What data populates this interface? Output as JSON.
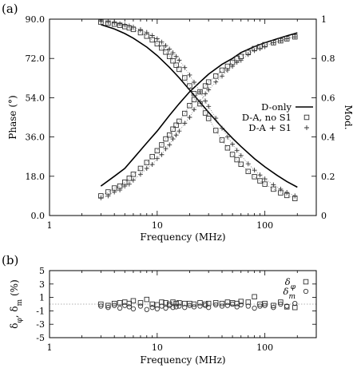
{
  "chart_data": [
    {
      "panel_label": "(a)",
      "type": "line",
      "x_scale": "log",
      "xlabel": "Frequency (MHz)",
      "ylabel": "Phase (°)",
      "y2label": "Mod.",
      "xlim": [
        1,
        300
      ],
      "ylim": [
        0,
        90
      ],
      "y2lim": [
        0,
        1
      ],
      "x_tick_labels": [
        "1",
        "10",
        "100"
      ],
      "y_tick_labels": [
        "0.0",
        "18.0",
        "36.0",
        "54.0",
        "72.0",
        "90.0"
      ],
      "y2_tick_labels": [
        "0",
        "0.2",
        "0.4",
        "0.6",
        "0.8",
        "1"
      ],
      "legend_position": "right-middle",
      "series": [
        {
          "name": "D-only",
          "marker": "line",
          "axis": "left",
          "x": [
            3,
            4,
            5,
            6,
            8,
            10,
            13,
            16,
            20,
            25,
            30,
            40,
            50,
            60,
            80,
            100,
            130,
            160,
            200
          ],
          "y": [
            87.5,
            85.5,
            83.4,
            81.3,
            77.2,
            73.3,
            67.9,
            63.1,
            57.6,
            51.9,
            47.3,
            40.4,
            35.4,
            31.6,
            26.1,
            22.3,
            18.4,
            15.6,
            13.0
          ]
        },
        {
          "name": "D-only",
          "marker": "line",
          "axis": "right",
          "legend": false,
          "x": [
            3,
            4,
            5,
            6,
            8,
            10,
            13,
            16,
            20,
            25,
            30,
            40,
            50,
            60,
            80,
            100,
            130,
            160,
            200
          ],
          "y": [
            0.15,
            0.2,
            0.24,
            0.29,
            0.37,
            0.43,
            0.51,
            0.57,
            0.63,
            0.68,
            0.72,
            0.77,
            0.8,
            0.83,
            0.86,
            0.88,
            0.9,
            0.915,
            0.93
          ]
        },
        {
          "name": "D-A, no S1",
          "marker": "square",
          "axis": "left",
          "x": [
            3,
            3.5,
            4,
            4.5,
            5,
            5.5,
            6,
            7,
            8,
            9,
            10,
            11,
            12,
            13,
            14,
            15,
            16,
            18,
            20,
            22,
            25,
            28,
            30,
            35,
            40,
            45,
            50,
            55,
            60,
            70,
            80,
            90,
            100,
            120,
            140,
            160,
            190
          ],
          "y": [
            88.6,
            88.2,
            87.7,
            87.2,
            86.6,
            86.0,
            85.3,
            83.8,
            82.2,
            80.5,
            78.7,
            76.8,
            74.9,
            72.9,
            70.9,
            68.9,
            67.0,
            63.1,
            59.4,
            55.9,
            51.2,
            47.0,
            44.5,
            39.0,
            34.6,
            31.0,
            28.0,
            25.6,
            23.5,
            20.2,
            17.8,
            15.9,
            14.4,
            12.1,
            10.4,
            9.2,
            7.8
          ]
        },
        {
          "name": "D-A, no S1",
          "marker": "square",
          "axis": "right",
          "legend": false,
          "x": [
            3,
            3.5,
            4,
            4.5,
            5,
            5.5,
            6,
            7,
            8,
            9,
            10,
            11,
            12,
            13,
            14,
            15,
            16,
            18,
            20,
            22,
            25,
            28,
            30,
            35,
            40,
            45,
            50,
            55,
            60,
            70,
            80,
            90,
            100,
            120,
            140,
            160,
            190
          ],
          "y": [
            0.1,
            0.12,
            0.14,
            0.15,
            0.17,
            0.19,
            0.21,
            0.24,
            0.27,
            0.3,
            0.33,
            0.36,
            0.39,
            0.41,
            0.44,
            0.46,
            0.48,
            0.52,
            0.56,
            0.59,
            0.63,
            0.66,
            0.68,
            0.71,
            0.74,
            0.76,
            0.78,
            0.8,
            0.81,
            0.83,
            0.85,
            0.86,
            0.87,
            0.88,
            0.89,
            0.9,
            0.91
          ]
        },
        {
          "name": "D-A + S1",
          "marker": "plus",
          "axis": "left",
          "x": [
            3,
            3.5,
            4,
            4.5,
            5,
            5.5,
            6,
            7,
            8,
            9,
            10,
            11,
            12,
            13,
            14,
            15,
            16,
            18,
            20,
            22,
            25,
            28,
            30,
            35,
            40,
            45,
            50,
            55,
            60,
            70,
            80,
            90,
            100,
            120,
            140,
            160,
            190
          ],
          "y": [
            89.0,
            88.7,
            88.3,
            87.9,
            87.4,
            86.9,
            86.4,
            85.2,
            83.9,
            82.5,
            81.0,
            79.5,
            77.9,
            76.3,
            74.6,
            72.9,
            71.2,
            67.8,
            64.4,
            61.1,
            56.7,
            52.5,
            50.0,
            44.6,
            40.0,
            36.0,
            32.7,
            29.9,
            27.5,
            23.7,
            20.8,
            18.6,
            16.8,
            14.1,
            12.1,
            10.6,
            9.0
          ]
        },
        {
          "name": "D-A + S1",
          "marker": "plus",
          "axis": "right",
          "legend": false,
          "x": [
            3,
            3.5,
            4,
            4.5,
            5,
            5.5,
            6,
            7,
            8,
            9,
            10,
            11,
            12,
            13,
            14,
            15,
            16,
            18,
            20,
            22,
            25,
            28,
            30,
            35,
            40,
            45,
            50,
            55,
            60,
            70,
            80,
            90,
            100,
            120,
            140,
            160,
            190
          ],
          "y": [
            0.09,
            0.1,
            0.12,
            0.13,
            0.15,
            0.16,
            0.18,
            0.21,
            0.24,
            0.26,
            0.29,
            0.31,
            0.34,
            0.36,
            0.39,
            0.41,
            0.43,
            0.47,
            0.5,
            0.54,
            0.58,
            0.62,
            0.64,
            0.68,
            0.71,
            0.74,
            0.76,
            0.78,
            0.79,
            0.82,
            0.84,
            0.85,
            0.86,
            0.88,
            0.89,
            0.9,
            0.91
          ]
        }
      ]
    },
    {
      "panel_label": "(b)",
      "type": "scatter",
      "x_scale": "log",
      "xlabel": "Frequency (MHz)",
      "ylabel": "δ_φ, δ_m (%)",
      "xlim": [
        1,
        300
      ],
      "ylim": [
        -5,
        5
      ],
      "x_tick_labels": [
        "1",
        "10",
        "100"
      ],
      "y_tick_labels": [
        "-5",
        "-3",
        "-1",
        "1",
        "3",
        "5"
      ],
      "reference_line": 0,
      "legend_position": "top-right",
      "series": [
        {
          "name": "δ_φ",
          "marker": "square",
          "x": [
            3,
            3.5,
            4,
            4.5,
            5,
            5.5,
            6,
            7,
            8,
            9,
            10,
            11,
            12,
            13,
            14,
            15,
            16,
            18,
            20,
            22,
            25,
            28,
            30,
            35,
            40,
            45,
            50,
            55,
            60,
            70,
            80,
            90,
            100,
            120,
            140,
            160,
            190
          ],
          "y": [
            0.0,
            -0.2,
            0.1,
            0.2,
            0.3,
            0.1,
            0.5,
            0.2,
            0.7,
            0.0,
            -0.1,
            0.3,
            0.2,
            0.0,
            0.3,
            0.1,
            0.2,
            0.1,
            0.1,
            0.0,
            0.2,
            0.0,
            0.1,
            0.2,
            0.1,
            0.3,
            0.2,
            0.1,
            0.4,
            0.3,
            1.1,
            0.0,
            0.1,
            -0.2,
            0.3,
            -0.4,
            -0.5
          ]
        },
        {
          "name": "δ_m",
          "marker": "circle",
          "x": [
            3,
            3.5,
            4,
            4.5,
            5,
            5.5,
            6,
            7,
            8,
            9,
            10,
            11,
            12,
            13,
            14,
            15,
            16,
            18,
            20,
            22,
            25,
            28,
            30,
            35,
            40,
            45,
            50,
            55,
            60,
            70,
            80,
            90,
            100,
            120,
            140,
            160,
            190
          ],
          "y": [
            -0.3,
            -0.5,
            -0.2,
            -0.6,
            -0.2,
            -0.4,
            -0.7,
            -0.3,
            -0.8,
            -0.5,
            -0.7,
            -0.3,
            -0.6,
            -0.2,
            -0.5,
            -0.4,
            -0.3,
            -0.5,
            -0.2,
            -0.4,
            -0.3,
            -0.2,
            -0.5,
            -0.1,
            -0.3,
            -0.2,
            0.0,
            -0.4,
            -0.1,
            -0.3,
            -0.6,
            -0.3,
            -0.2,
            -0.5,
            0.0,
            -0.3,
            0.1
          ]
        }
      ]
    }
  ]
}
